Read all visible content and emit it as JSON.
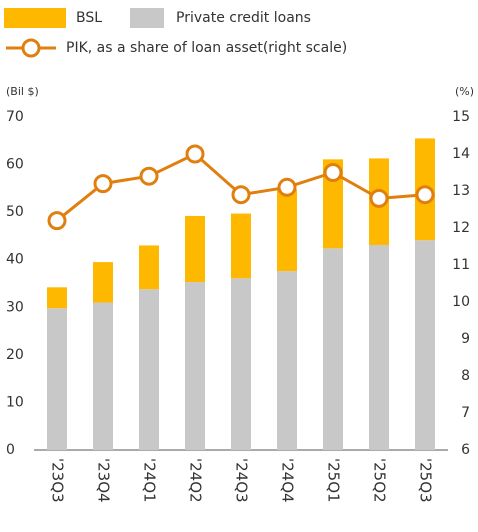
{
  "chart_data": {
    "type": "bar_line",
    "categories": [
      "'23Q3",
      "'23Q4",
      "'24Q1",
      "'24Q2",
      "'24Q3",
      "'24Q4",
      "'25Q1",
      "'25Q2",
      "'25Q3"
    ],
    "series": [
      {
        "name": "BSL",
        "color": "#ffb800",
        "values": [
          4.4,
          8.5,
          9.2,
          13.9,
          13.6,
          17.2,
          18.7,
          18.2,
          21.4
        ]
      },
      {
        "name": "Private credit loans",
        "color": "#c8c8c8",
        "values": [
          29.8,
          31.0,
          33.8,
          35.3,
          36.1,
          37.6,
          42.4,
          43.1,
          44.1
        ]
      },
      {
        "name": "PIK, as a share of loan asset(right scale)",
        "color": "#e07f0e",
        "axis": "y2",
        "values": [
          12.2,
          13.2,
          13.4,
          14.0,
          12.9,
          13.1,
          13.5,
          12.8,
          12.9
        ]
      }
    ],
    "y_label": "(Bil $)",
    "y2_label": "(%)",
    "ylim": [
      0,
      70
    ],
    "yticks": [
      0,
      10,
      20,
      30,
      40,
      50,
      60,
      70
    ],
    "y2lim": [
      6,
      15
    ],
    "y2ticks": [
      6,
      7,
      8,
      9,
      10,
      11,
      12,
      13,
      14,
      15
    ]
  }
}
